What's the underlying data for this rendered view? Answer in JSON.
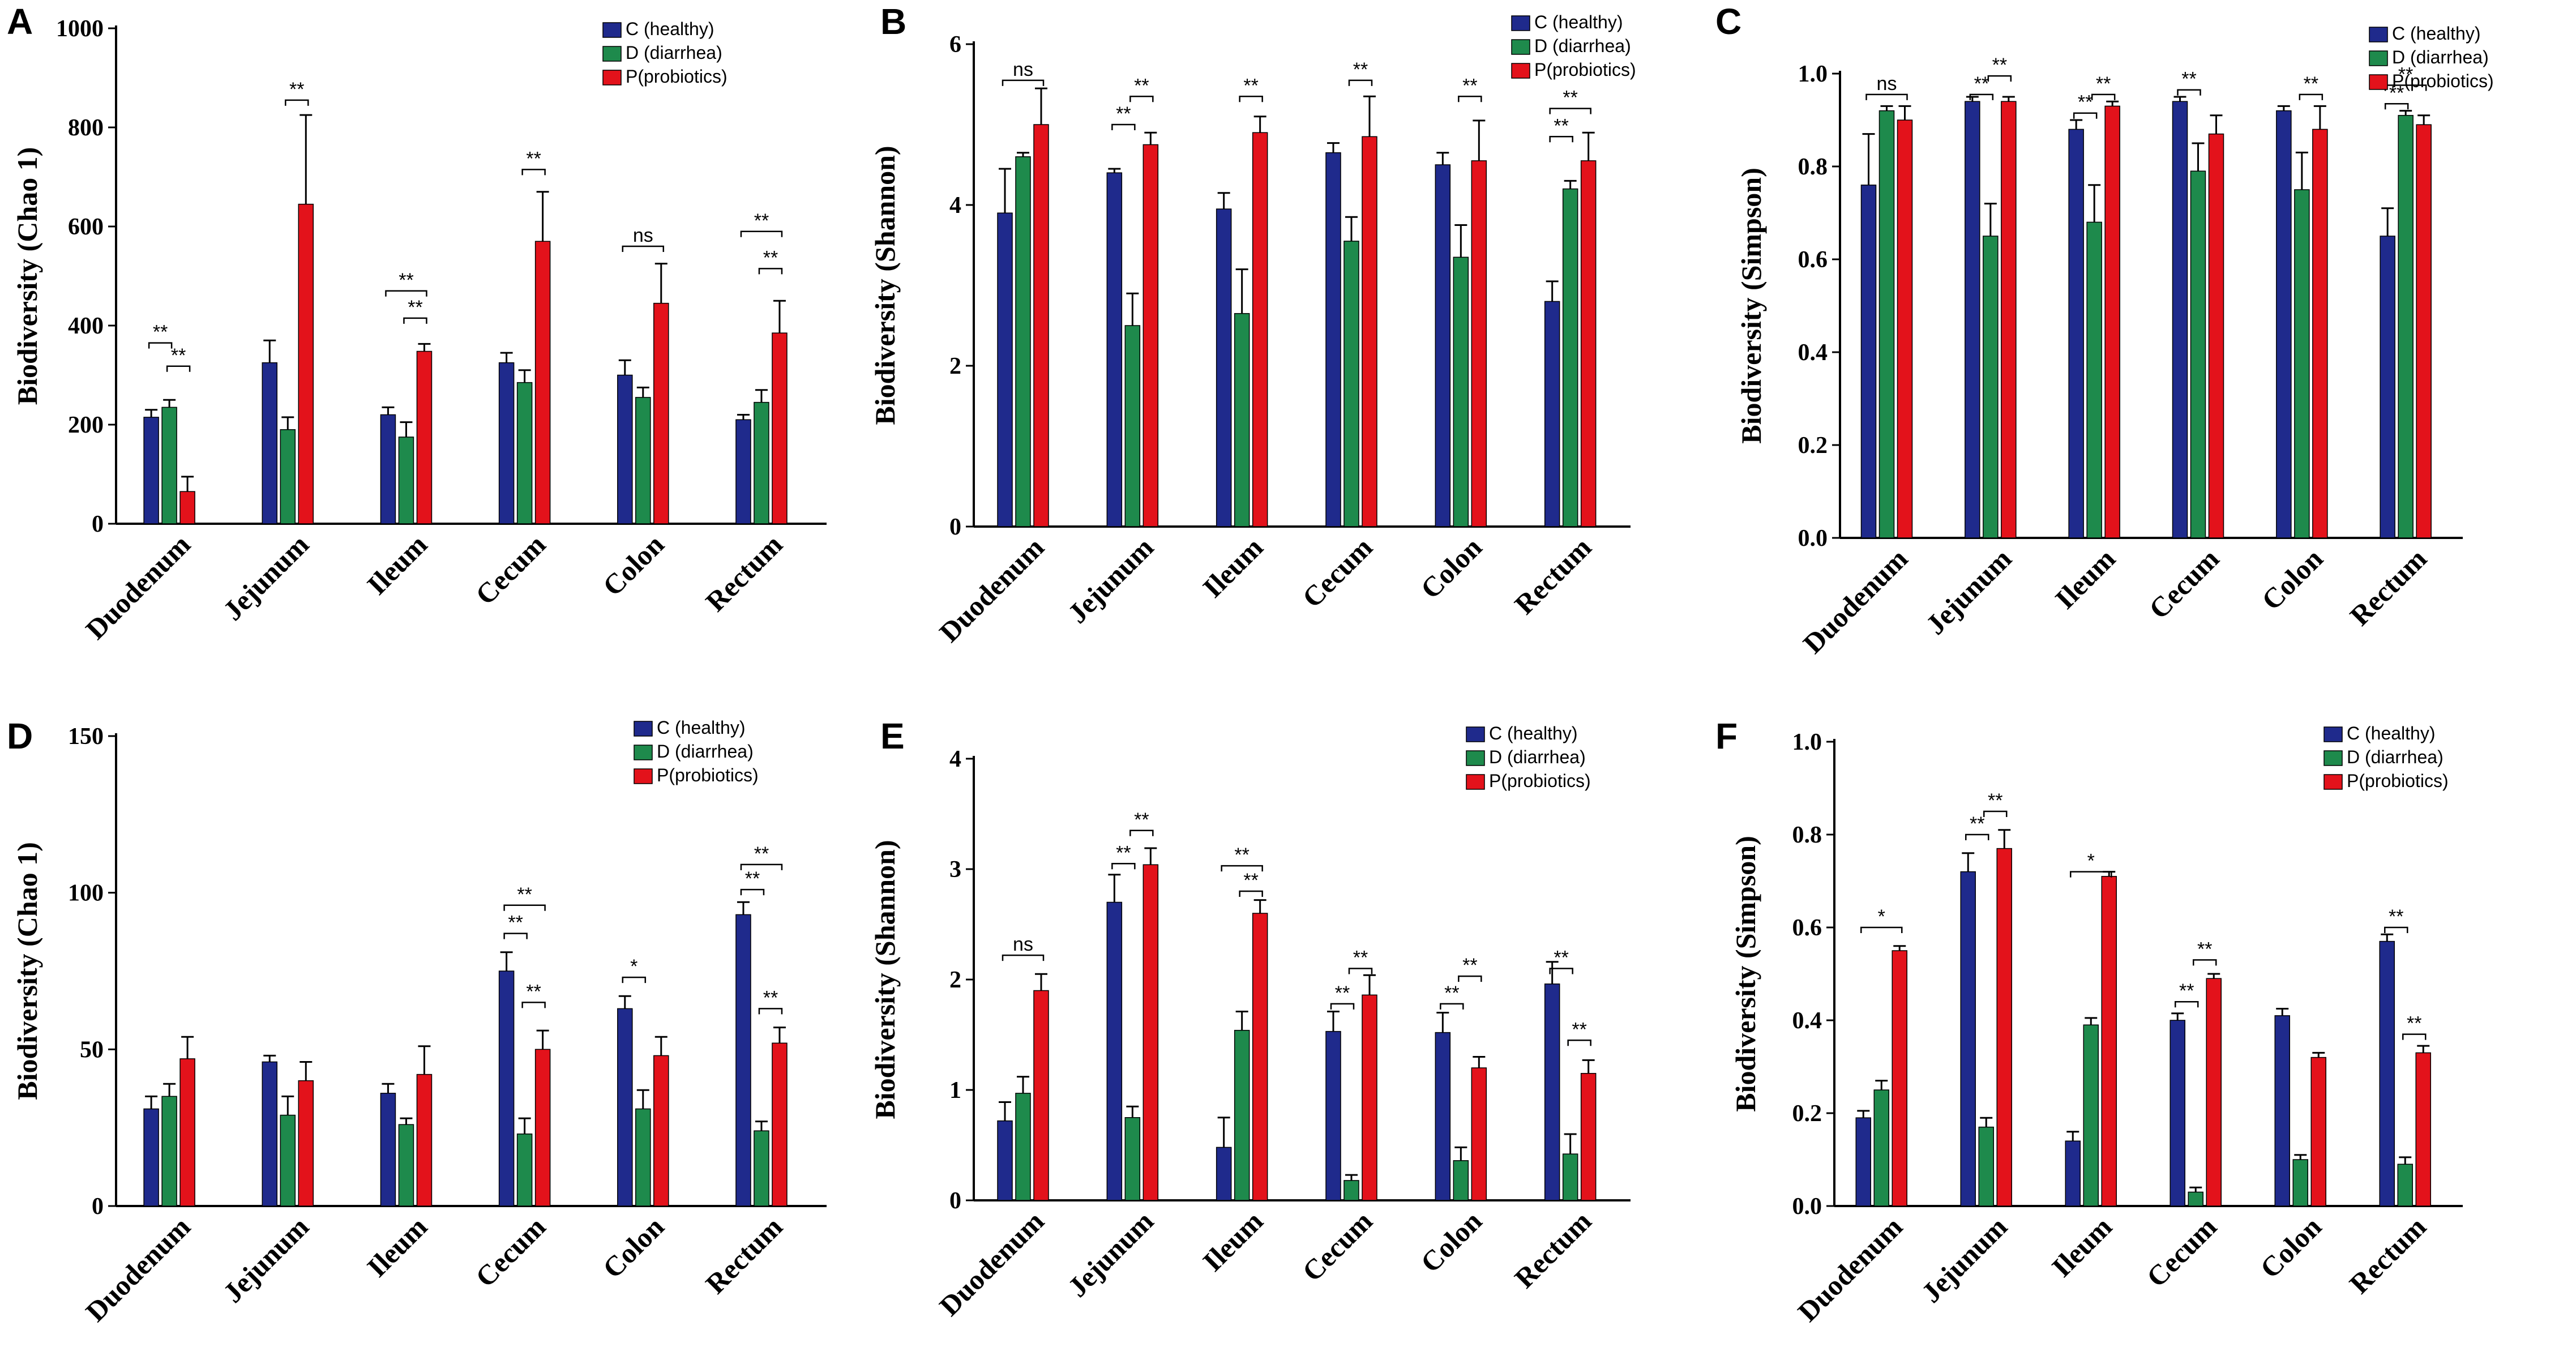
{
  "chart_data": [
    {
      "id": "A",
      "type": "bar",
      "panel_label": "A",
      "ylabel": "Biodiversity   (Chao 1)",
      "ylim": [
        0,
        1000
      ],
      "yticks": [
        "0",
        "200",
        "400",
        "600",
        "800",
        "1000"
      ],
      "categories": [
        "Duodenum",
        "Jejunum",
        "Ileum",
        "Cecum",
        "Colon",
        "Rectum"
      ],
      "legend": [
        "C (healthy)",
        "D (diarrhea)",
        "P(probiotics)"
      ],
      "series": [
        {
          "name": "C (healthy)",
          "color": "#1f2a8c",
          "values": [
            215,
            325,
            220,
            325,
            300,
            210
          ],
          "errors": [
            15,
            45,
            15,
            20,
            30,
            10
          ]
        },
        {
          "name": "D (diarrhea)",
          "color": "#1e8a4c",
          "values": [
            235,
            190,
            175,
            285,
            255,
            245
          ],
          "errors": [
            15,
            25,
            30,
            25,
            20,
            25
          ]
        },
        {
          "name": "P(probiotics)",
          "color": "#e3121b",
          "values": [
            65,
            645,
            348,
            570,
            445,
            385
          ],
          "errors": [
            30,
            180,
            15,
            100,
            80,
            65
          ]
        }
      ],
      "significance": [
        {
          "category": 0,
          "from": 0,
          "to": 1,
          "label": "**",
          "level": 365
        },
        {
          "category": 0,
          "from": 1,
          "to": 2,
          "label": "**",
          "level": 318
        },
        {
          "category": 1,
          "from": 1,
          "to": 2,
          "label": "**",
          "level": 855
        },
        {
          "category": 2,
          "from": 0,
          "to": 2,
          "label": "**",
          "level": 470
        },
        {
          "category": 2,
          "from": 1,
          "to": 2,
          "label": "**",
          "level": 415
        },
        {
          "category": 3,
          "from": 1,
          "to": 2,
          "label": "**",
          "level": 715
        },
        {
          "category": 4,
          "from": 0,
          "to": 2,
          "label": "ns",
          "level": 560
        },
        {
          "category": 5,
          "from": 0,
          "to": 2,
          "label": "**",
          "level": 590
        },
        {
          "category": 5,
          "from": 1,
          "to": 2,
          "label": "**",
          "level": 515
        }
      ]
    },
    {
      "id": "B",
      "type": "bar",
      "panel_label": "B",
      "ylabel": "Biodiversity   (Shannon)",
      "ylim": [
        0,
        6
      ],
      "yticks": [
        "0",
        "2",
        "4",
        "6"
      ],
      "categories": [
        "Duodenum",
        "Jejunum",
        "Ileum",
        "Cecum",
        "Colon",
        "Rectum"
      ],
      "legend": [
        "C (healthy)",
        "D (diarrhea)",
        "P(probiotics)"
      ],
      "series": [
        {
          "name": "C (healthy)",
          "color": "#1f2a8c",
          "values": [
            3.9,
            4.4,
            3.95,
            4.65,
            4.5,
            2.8
          ],
          "errors": [
            0.55,
            0.05,
            0.2,
            0.12,
            0.15,
            0.25
          ]
        },
        {
          "name": "D (diarrhea)",
          "color": "#1e8a4c",
          "values": [
            4.6,
            2.5,
            2.65,
            3.55,
            3.35,
            4.2
          ],
          "errors": [
            0.05,
            0.4,
            0.55,
            0.3,
            0.4,
            0.1
          ]
        },
        {
          "name": "P(probiotics)",
          "color": "#e3121b",
          "values": [
            5.0,
            4.75,
            4.9,
            4.85,
            4.55,
            4.55
          ],
          "errors": [
            0.45,
            0.15,
            0.2,
            0.5,
            0.5,
            0.35
          ]
        }
      ],
      "significance": [
        {
          "category": 0,
          "from": 0,
          "to": 2,
          "label": "ns",
          "level": 5.55
        },
        {
          "category": 1,
          "from": 0,
          "to": 1,
          "label": "**",
          "level": 5.0
        },
        {
          "category": 1,
          "from": 1,
          "to": 2,
          "label": "**",
          "level": 5.35
        },
        {
          "category": 2,
          "from": 1,
          "to": 2,
          "label": "**",
          "level": 5.35
        },
        {
          "category": 3,
          "from": 1,
          "to": 2,
          "label": "**",
          "level": 5.55
        },
        {
          "category": 4,
          "from": 1,
          "to": 2,
          "label": "**",
          "level": 5.35
        },
        {
          "category": 5,
          "from": 0,
          "to": 2,
          "label": "**",
          "level": 5.2
        },
        {
          "category": 5,
          "from": 0,
          "to": 1,
          "label": "**",
          "level": 4.85
        }
      ]
    },
    {
      "id": "C",
      "type": "bar",
      "panel_label": "C",
      "ylabel": "Biodiversity   (Simpson)",
      "ylim": [
        0,
        1.0
      ],
      "yticks": [
        "0.0",
        "0.2",
        "0.4",
        "0.6",
        "0.8",
        "1.0"
      ],
      "categories": [
        "Duodenum",
        "Jejunum",
        "Ileum",
        "Cecum",
        "Colon",
        "Rectum"
      ],
      "legend": [
        "C (healthy)",
        "D (diarrhea)",
        "P(probiotics)"
      ],
      "series": [
        {
          "name": "C (healthy)",
          "color": "#1f2a8c",
          "values": [
            0.76,
            0.94,
            0.88,
            0.94,
            0.92,
            0.65
          ],
          "errors": [
            0.11,
            0.01,
            0.02,
            0.01,
            0.01,
            0.06
          ]
        },
        {
          "name": "D (diarrhea)",
          "color": "#1e8a4c",
          "values": [
            0.92,
            0.65,
            0.68,
            0.79,
            0.75,
            0.91
          ],
          "errors": [
            0.01,
            0.07,
            0.08,
            0.06,
            0.08,
            0.01
          ]
        },
        {
          "name": "P(probiotics)",
          "color": "#e3121b",
          "values": [
            0.9,
            0.94,
            0.93,
            0.87,
            0.88,
            0.89
          ],
          "errors": [
            0.03,
            0.01,
            0.01,
            0.04,
            0.05,
            0.02
          ]
        }
      ],
      "significance": [
        {
          "category": 0,
          "from": 0,
          "to": 2,
          "label": "ns",
          "level": 0.955
        },
        {
          "category": 1,
          "from": 0,
          "to": 1,
          "label": "**",
          "level": 0.955
        },
        {
          "category": 1,
          "from": 1,
          "to": 2,
          "label": "**",
          "level": 0.995
        },
        {
          "category": 2,
          "from": 0,
          "to": 1,
          "label": "**",
          "level": 0.915
        },
        {
          "category": 2,
          "from": 1,
          "to": 2,
          "label": "**",
          "level": 0.955
        },
        {
          "category": 3,
          "from": 0,
          "to": 1,
          "label": "**",
          "level": 0.965
        },
        {
          "category": 4,
          "from": 1,
          "to": 2,
          "label": "**",
          "level": 0.955
        },
        {
          "category": 5,
          "from": 0,
          "to": 2,
          "label": "**",
          "level": 0.975
        },
        {
          "category": 5,
          "from": 0,
          "to": 1,
          "label": "**",
          "level": 0.935
        }
      ]
    },
    {
      "id": "D",
      "type": "bar",
      "panel_label": "D",
      "ylabel": "Biodiversity   (Chao 1)",
      "ylim": [
        0,
        150
      ],
      "yticks": [
        "0",
        "50",
        "100",
        "150"
      ],
      "categories": [
        "Duodenum",
        "Jejunum",
        "Ileum",
        "Cecum",
        "Colon",
        "Rectum"
      ],
      "legend": [
        "C (healthy)",
        "D (diarrhea)",
        "P(probiotics)"
      ],
      "series": [
        {
          "name": "C (healthy)",
          "color": "#1f2a8c",
          "values": [
            31,
            46,
            36,
            75,
            63,
            93
          ],
          "errors": [
            4,
            2,
            3,
            6,
            4,
            4
          ]
        },
        {
          "name": "D (diarrhea)",
          "color": "#1e8a4c",
          "values": [
            35,
            29,
            26,
            23,
            31,
            24
          ],
          "errors": [
            4,
            6,
            2,
            5,
            6,
            3
          ]
        },
        {
          "name": "P(probiotics)",
          "color": "#e3121b",
          "values": [
            47,
            40,
            42,
            50,
            48,
            52
          ],
          "errors": [
            7,
            6,
            9,
            6,
            6,
            5
          ]
        }
      ],
      "significance": [
        {
          "category": 3,
          "from": 0,
          "to": 2,
          "label": "**",
          "level": 96
        },
        {
          "category": 3,
          "from": 0,
          "to": 1,
          "label": "**",
          "level": 87
        },
        {
          "category": 3,
          "from": 1,
          "to": 2,
          "label": "**",
          "level": 65
        },
        {
          "category": 4,
          "from": 0,
          "to": 1,
          "label": "*",
          "level": 73
        },
        {
          "category": 5,
          "from": 0,
          "to": 2,
          "label": "**",
          "level": 109
        },
        {
          "category": 5,
          "from": 0,
          "to": 1,
          "label": "**",
          "level": 101
        },
        {
          "category": 5,
          "from": 1,
          "to": 2,
          "label": "**",
          "level": 63
        }
      ]
    },
    {
      "id": "E",
      "type": "bar",
      "panel_label": "E",
      "ylabel": "Biodiversity   (Shannon)",
      "ylim": [
        0,
        4
      ],
      "yticks": [
        "0",
        "1",
        "2",
        "3",
        "4"
      ],
      "categories": [
        "Duodenum",
        "Jejunum",
        "Ileum",
        "Cecum",
        "Colon",
        "Rectum"
      ],
      "legend": [
        "C (healthy)",
        "D (diarrhea)",
        "P(probiotics)"
      ],
      "series": [
        {
          "name": "C (healthy)",
          "color": "#1f2a8c",
          "values": [
            0.72,
            2.7,
            0.48,
            1.53,
            1.52,
            1.96
          ],
          "errors": [
            0.17,
            0.25,
            0.27,
            0.18,
            0.18,
            0.2
          ]
        },
        {
          "name": "D (diarrhea)",
          "color": "#1e8a4c",
          "values": [
            0.97,
            0.75,
            1.54,
            0.18,
            0.36,
            0.42
          ],
          "errors": [
            0.15,
            0.1,
            0.17,
            0.05,
            0.12,
            0.18
          ]
        },
        {
          "name": "P(probiotics)",
          "color": "#e3121b",
          "values": [
            1.9,
            3.04,
            2.6,
            1.86,
            1.2,
            1.15
          ],
          "errors": [
            0.15,
            0.15,
            0.12,
            0.18,
            0.1,
            0.12
          ]
        }
      ],
      "significance": [
        {
          "category": 0,
          "from": 0,
          "to": 2,
          "label": "ns",
          "level": 2.22
        },
        {
          "category": 1,
          "from": 0,
          "to": 1,
          "label": "**",
          "level": 3.05
        },
        {
          "category": 1,
          "from": 1,
          "to": 2,
          "label": "**",
          "level": 3.35
        },
        {
          "category": 2,
          "from": 0,
          "to": 2,
          "label": "**",
          "level": 3.03
        },
        {
          "category": 2,
          "from": 1,
          "to": 2,
          "label": "**",
          "level": 2.8
        },
        {
          "category": 3,
          "from": 0,
          "to": 1,
          "label": "**",
          "level": 1.78
        },
        {
          "category": 3,
          "from": 1,
          "to": 2,
          "label": "**",
          "level": 2.1
        },
        {
          "category": 4,
          "from": 0,
          "to": 1,
          "label": "**",
          "level": 1.78
        },
        {
          "category": 4,
          "from": 1,
          "to": 2,
          "label": "**",
          "level": 2.03
        },
        {
          "category": 5,
          "from": 0,
          "to": 1,
          "label": "**",
          "level": 2.1
        },
        {
          "category": 5,
          "from": 1,
          "to": 2,
          "label": "**",
          "level": 1.45
        }
      ]
    },
    {
      "id": "F",
      "type": "bar",
      "panel_label": "F",
      "ylabel": "Biodiversity   (Simpson)",
      "ylim": [
        0,
        1.0
      ],
      "yticks": [
        "0.0",
        "0.2",
        "0.4",
        "0.6",
        "0.8",
        "1.0"
      ],
      "categories": [
        "Duodenum",
        "Jejunum",
        "Ileum",
        "Cecum",
        "Colon",
        "Rectum"
      ],
      "legend": [
        "C (healthy)",
        "D (diarrhea)",
        "P(probiotics)"
      ],
      "series": [
        {
          "name": "C (healthy)",
          "color": "#1f2a8c",
          "values": [
            0.19,
            0.72,
            0.14,
            0.4,
            0.41,
            0.57
          ],
          "errors": [
            0.015,
            0.04,
            0.02,
            0.015,
            0.015,
            0.015
          ]
        },
        {
          "name": "D (diarrhea)",
          "color": "#1e8a4c",
          "values": [
            0.25,
            0.17,
            0.39,
            0.03,
            0.1,
            0.09
          ],
          "errors": [
            0.02,
            0.02,
            0.015,
            0.01,
            0.01,
            0.015
          ]
        },
        {
          "name": "P(probiotics)",
          "color": "#e3121b",
          "values": [
            0.55,
            0.77,
            0.71,
            0.49,
            0.32,
            0.33
          ],
          "errors": [
            0.01,
            0.04,
            0.01,
            0.01,
            0.01,
            0.015
          ]
        }
      ],
      "significance": [
        {
          "category": 0,
          "from": 0,
          "to": 2,
          "label": "*",
          "level": 0.6
        },
        {
          "category": 1,
          "from": 0,
          "to": 1,
          "label": "**",
          "level": 0.8
        },
        {
          "category": 1,
          "from": 1,
          "to": 2,
          "label": "**",
          "level": 0.85
        },
        {
          "category": 2,
          "from": 0,
          "to": 2,
          "label": "*",
          "level": 0.72
        },
        {
          "category": 3,
          "from": 0,
          "to": 1,
          "label": "**",
          "level": 0.44
        },
        {
          "category": 3,
          "from": 1,
          "to": 2,
          "label": "**",
          "level": 0.53
        },
        {
          "category": 5,
          "from": 0,
          "to": 1,
          "label": "**",
          "level": 0.6
        },
        {
          "category": 5,
          "from": 1,
          "to": 2,
          "label": "**",
          "level": 0.37
        }
      ]
    }
  ]
}
